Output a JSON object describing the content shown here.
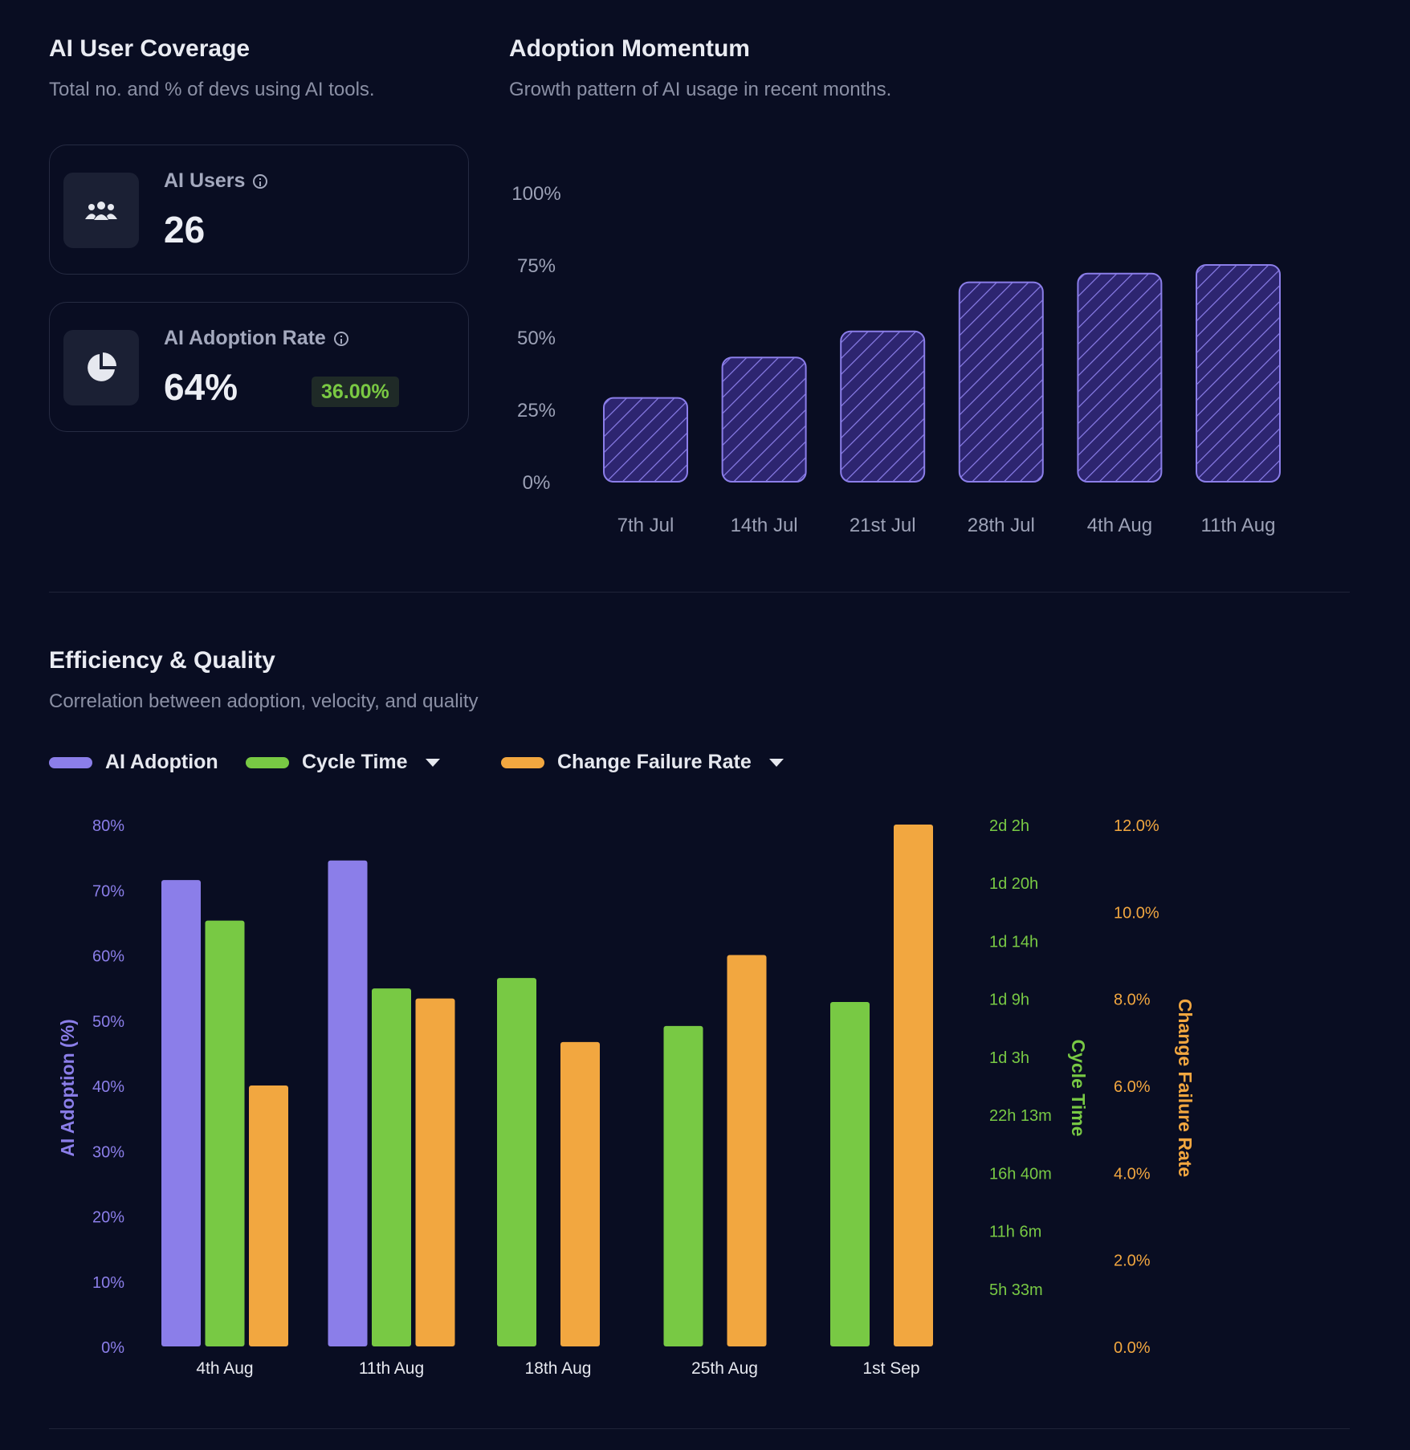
{
  "coverage": {
    "title": "AI User Coverage",
    "subtitle": "Total no. and % of devs using AI tools.",
    "users_card": {
      "label": "AI Users",
      "value": "26",
      "icon": "users-icon"
    },
    "adoption_card": {
      "label": "AI Adoption Rate",
      "value": "64%",
      "delta": "36.00%",
      "icon": "pie-chart-icon"
    }
  },
  "momentum": {
    "title": "Adoption Momentum",
    "subtitle": "Growth pattern of AI usage in recent months."
  },
  "efficiency": {
    "title": "Efficiency & Quality",
    "subtitle": "Correlation between adoption, velocity, and quality",
    "legend": {
      "adoption": "AI Adoption",
      "cycle": "Cycle Time",
      "cfr": "Change Failure Rate"
    }
  },
  "colors": {
    "background": "#090d22",
    "purple": "#8b7ee9",
    "purple_dark": "#3b2f8f",
    "green": "#78c944",
    "orange": "#f2a740",
    "badge_green": "#7ac943"
  },
  "chart_data": [
    {
      "type": "bar",
      "categories": [
        "7th Jul",
        "14th Jul",
        "21st Jul",
        "28th Jul",
        "4th Aug",
        "11th Aug"
      ],
      "values": [
        29,
        43,
        52,
        69,
        72,
        75
      ],
      "yticks": [
        "0%",
        "25%",
        "50%",
        "75%",
        "100%"
      ],
      "ylim": [
        0,
        100
      ],
      "grid": false,
      "pattern": "diagonal-hatch"
    },
    {
      "type": "bar",
      "categories": [
        "4th Aug",
        "11th Aug",
        "18th Aug",
        "25th Aug",
        "1st Sep"
      ],
      "series": [
        {
          "name": "AI Adoption",
          "axis": "left",
          "values": [
            71.5,
            74.5,
            null,
            null,
            null
          ]
        },
        {
          "name": "Cycle Time",
          "axis": "right1",
          "values_hours": [
            40.8,
            34.3,
            35.3,
            30.7,
            33.0
          ]
        },
        {
          "name": "Change Failure Rate",
          "axis": "right2",
          "values": [
            6.0,
            8.0,
            7.0,
            9.0,
            12.0
          ]
        }
      ],
      "y_left": {
        "label": "AI Adoption (%)",
        "ticks": [
          "0%",
          "10%",
          "20%",
          "30%",
          "40%",
          "50%",
          "60%",
          "70%",
          "80%"
        ],
        "lim": [
          0,
          80
        ]
      },
      "y_right1": {
        "label": "Cycle Time",
        "ticks": [
          "5h 33m",
          "11h 6m",
          "16h 40m",
          "22h 13m",
          "1d 3h",
          "1d 9h",
          "1d 14h",
          "1d 20h",
          "2d 2h"
        ],
        "lim_hours": [
          0,
          50
        ]
      },
      "y_right2": {
        "label": "Change Failure Rate",
        "ticks": [
          "0.0%",
          "2.0%",
          "4.0%",
          "6.0%",
          "8.0%",
          "10.0%",
          "12.0%"
        ],
        "lim": [
          0,
          12
        ]
      },
      "grid": false,
      "legend": "top-left"
    }
  ]
}
